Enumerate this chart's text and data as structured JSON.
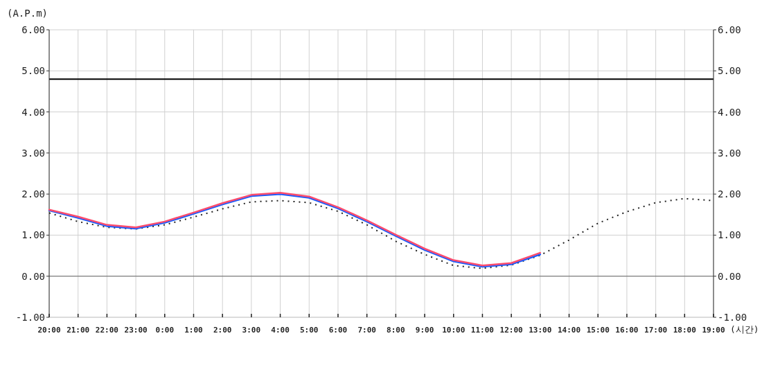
{
  "chart_data": {
    "type": "line",
    "ylabel": "(A.P.m)",
    "xlabel": "(시간)",
    "categories": [
      "20:00",
      "21:00",
      "22:00",
      "23:00",
      "0:00",
      "1:00",
      "2:00",
      "3:00",
      "4:00",
      "5:00",
      "6:00",
      "7:00",
      "8:00",
      "9:00",
      "10:00",
      "11:00",
      "12:00",
      "13:00",
      "14:00",
      "15:00",
      "16:00",
      "17:00",
      "18:00",
      "19:00"
    ],
    "series": [
      {
        "color": "#222222",
        "line_style": "dotted",
        "values": [
          1.54,
          1.33,
          1.19,
          1.15,
          1.25,
          1.44,
          1.64,
          1.81,
          1.84,
          1.79,
          1.58,
          1.25,
          0.85,
          0.53,
          0.26,
          0.19,
          0.27,
          0.51,
          0.88,
          1.29,
          1.57,
          1.79,
          1.89,
          1.84
        ]
      },
      {
        "color": "#1a5cff",
        "line_style": "solid",
        "values": [
          1.6,
          1.42,
          1.22,
          1.16,
          1.3,
          1.52,
          1.75,
          1.95,
          2.0,
          1.91,
          1.65,
          1.33,
          0.98,
          0.64,
          0.36,
          0.23,
          0.29,
          0.53,
          null,
          null,
          null,
          null,
          null,
          null
        ]
      },
      {
        "color": "#ff4d6d",
        "line_style": "solid",
        "values": [
          1.62,
          1.45,
          1.25,
          1.19,
          1.33,
          1.55,
          1.78,
          1.98,
          2.03,
          1.94,
          1.68,
          1.36,
          1.01,
          0.67,
          0.39,
          0.26,
          0.32,
          0.57,
          null,
          null,
          null,
          null,
          null,
          null
        ]
      }
    ],
    "ylim": [
      -1,
      6
    ],
    "yticks": [
      {
        "value": -1,
        "label": "-1.00"
      },
      {
        "value": 0,
        "label": "0.00"
      },
      {
        "value": 1,
        "label": "1.00"
      },
      {
        "value": 2,
        "label": "2.00"
      },
      {
        "value": 3,
        "label": "3.00"
      },
      {
        "value": 4,
        "label": "4.00"
      },
      {
        "value": 5,
        "label": "5.00"
      },
      {
        "value": 6,
        "label": "6.00"
      }
    ],
    "y2lim": [
      -1,
      6
    ],
    "y2ticks": [
      {
        "value": -1,
        "label": "-1.00"
      },
      {
        "value": 0,
        "label": "0.00"
      },
      {
        "value": 1,
        "label": "1.00"
      },
      {
        "value": 2,
        "label": "2.00"
      },
      {
        "value": 3,
        "label": "3.00"
      },
      {
        "value": 4,
        "label": "4.00"
      },
      {
        "value": 5,
        "label": "5.00"
      },
      {
        "value": 6,
        "label": "6.00"
      }
    ],
    "ref_lines": [
      {
        "axis": "y",
        "value": 0,
        "color": "#666666"
      },
      {
        "axis": "y",
        "value": 4.8,
        "color": "#000000"
      }
    ],
    "grid": true
  }
}
